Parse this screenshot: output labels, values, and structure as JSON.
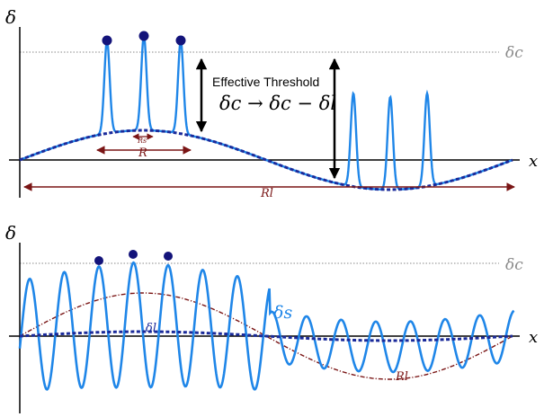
{
  "colors": {
    "axis": "#000000",
    "threshold_line": "#888888",
    "threshold_label": "#8a8a8a",
    "small_mode": "#1f86e8",
    "long_mode": "#1a2a9a",
    "peak_marker": "#13137a",
    "scale_arrow": "#7a1515",
    "annotation": "#000000"
  },
  "top_panel": {
    "y_label": "δ",
    "x_label": "x",
    "threshold_label": "δc",
    "annotation_title": "Effective Threshold",
    "annotation_formula": "δc → δc − δl",
    "rs_label": "Rs",
    "r_label": "R",
    "rl_label": "Rl"
  },
  "bottom_panel": {
    "y_label": "δ",
    "x_label": "x",
    "threshold_label": "δc",
    "small_label": "δs",
    "long_label": "δl",
    "long_scale_label": "Rl"
  }
}
